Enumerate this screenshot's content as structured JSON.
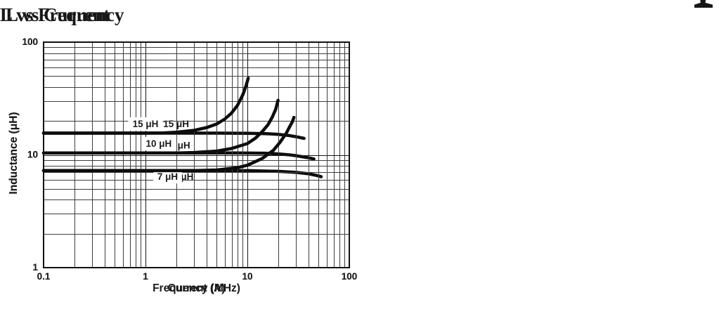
{
  "artifacts": {
    "top_right_ink_fragment": "cropped-character-fragment"
  },
  "colors": {
    "background": "#ffffff",
    "text": "#1a1a1a",
    "frame": "#111111",
    "grid_minor": "#3d3d3d",
    "grid_major": "#161616",
    "curve": "#0d0d0d",
    "label_box": "#ffffff"
  },
  "chart_data": [
    {
      "type": "line",
      "title": "L vs Current",
      "xlabel": "Current (A)",
      "ylabel": "Inductance (μH)",
      "xscale": "log",
      "yscale": "log",
      "xlim": [
        0.1,
        100
      ],
      "ylim": [
        1,
        100
      ],
      "grid": "log-log full minor grid",
      "legend": "inline curve labels",
      "xticks": [
        {
          "v": 0.1,
          "label": "0.1"
        },
        {
          "v": 1,
          "label": "1"
        },
        {
          "v": 10,
          "label": "10"
        },
        {
          "v": 100,
          "label": "100"
        }
      ],
      "yticks": [
        {
          "v": 1,
          "label": "1"
        },
        {
          "v": 10,
          "label": "10"
        },
        {
          "v": 100,
          "label": "100"
        }
      ],
      "series": [
        {
          "name": "15uH",
          "label": "15 μH",
          "label_at": [
            2.0,
            18.8
          ],
          "points": [
            [
              0.1,
              15.6
            ],
            [
              1,
              15.6
            ],
            [
              5,
              15.6
            ],
            [
              10,
              15.55
            ],
            [
              15,
              15.45
            ],
            [
              20,
              15.2
            ],
            [
              25,
              14.9
            ],
            [
              30,
              14.5
            ],
            [
              36,
              14.0
            ]
          ]
        },
        {
          "name": "10uH",
          "label": "10 μH",
          "label_at": [
            2.05,
            12.1
          ],
          "points": [
            [
              0.1,
              10.4
            ],
            [
              1,
              10.4
            ],
            [
              8,
              10.4
            ],
            [
              15,
              10.35
            ],
            [
              20,
              10.2
            ],
            [
              25,
              10.05
            ],
            [
              30,
              9.85
            ],
            [
              38,
              9.5
            ],
            [
              45,
              9.2
            ]
          ]
        },
        {
          "name": "7uH",
          "label": "7 μH",
          "label_at": [
            2.35,
            6.4
          ],
          "points": [
            [
              0.1,
              7.25
            ],
            [
              1,
              7.25
            ],
            [
              10,
              7.25
            ],
            [
              20,
              7.15
            ],
            [
              30,
              7.0
            ],
            [
              40,
              6.8
            ],
            [
              47,
              6.6
            ],
            [
              53,
              6.4
            ]
          ]
        }
      ]
    },
    {
      "type": "line",
      "title": "L vs Frequency",
      "xlabel": "Frequency (MHz)",
      "ylabel": "Inductance (μH)",
      "xscale": "log",
      "yscale": "log",
      "xlim": [
        0.1,
        100
      ],
      "ylim": [
        1,
        100
      ],
      "grid": "log-log full minor grid",
      "legend": "inline curve labels",
      "xticks": [
        {
          "v": 0.1,
          "label": "0.1"
        },
        {
          "v": 1,
          "label": "1"
        },
        {
          "v": 10,
          "label": "10"
        },
        {
          "v": 100,
          "label": "100"
        }
      ],
      "yticks": [
        {
          "v": 1,
          "label": "1"
        },
        {
          "v": 10,
          "label": "10"
        },
        {
          "v": 100,
          "label": "100"
        }
      ],
      "series": [
        {
          "name": "15uH",
          "label": "15 μH",
          "label_at": [
            1.0,
            18.8
          ],
          "points": [
            [
              0.1,
              15.6
            ],
            [
              1,
              15.6
            ],
            [
              1.5,
              15.65
            ],
            [
              2,
              15.9
            ],
            [
              3,
              16.5
            ],
            [
              4,
              17.5
            ],
            [
              5,
              18.8
            ],
            [
              6,
              20.8
            ],
            [
              7,
              23.5
            ],
            [
              8,
              27.5
            ],
            [
              9,
              34
            ],
            [
              9.7,
              41
            ],
            [
              10.2,
              48
            ]
          ]
        },
        {
          "name": "10uH",
          "label": "10 μH",
          "label_at": [
            1.35,
            12.6
          ],
          "points": [
            [
              0.1,
              10.4
            ],
            [
              1,
              10.4
            ],
            [
              2,
              10.4
            ],
            [
              3,
              10.5
            ],
            [
              5,
              10.8
            ],
            [
              7,
              11.4
            ],
            [
              10,
              12.6
            ],
            [
              12,
              14.1
            ],
            [
              14,
              16.1
            ],
            [
              16,
              18.6
            ],
            [
              17.5,
              21.5
            ],
            [
              19,
              25.5
            ],
            [
              20,
              30.5
            ]
          ]
        },
        {
          "name": "7uH",
          "label": "7 μH",
          "label_at": [
            1.65,
            6.4
          ],
          "points": [
            [
              0.1,
              7.25
            ],
            [
              1,
              7.25
            ],
            [
              3,
              7.25
            ],
            [
              5,
              7.35
            ],
            [
              8,
              7.7
            ],
            [
              10,
              8.1
            ],
            [
              14,
              9.3
            ],
            [
              18,
              11
            ],
            [
              21,
              13
            ],
            [
              24,
              15.5
            ],
            [
              26,
              17.8
            ],
            [
              27.5,
              19.5
            ],
            [
              28.6,
              21.5
            ]
          ]
        }
      ]
    }
  ]
}
